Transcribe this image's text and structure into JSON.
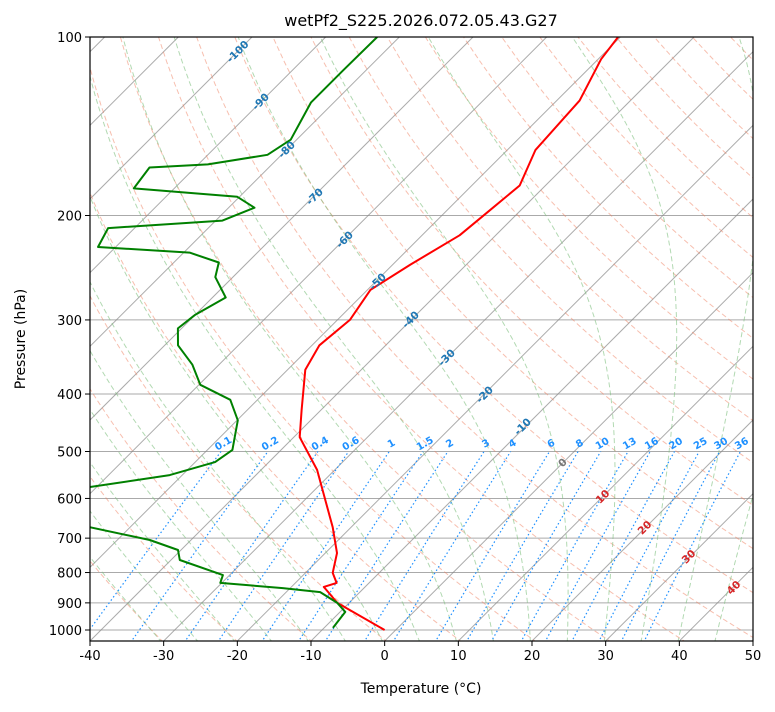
{
  "chart_data": {
    "type": "line",
    "subtype": "skew-t log-p",
    "title": "wetPf2_S225.2026.072.05.43.G27",
    "xlabel": "Temperature (°C)",
    "ylabel": "Pressure (hPa)",
    "xlim": [
      -40,
      50
    ],
    "ylim": [
      1050,
      100
    ],
    "x_ticks": [
      -40,
      -30,
      -20,
      -10,
      0,
      10,
      20,
      30,
      40,
      50
    ],
    "y_ticks": [
      1000,
      900,
      800,
      700,
      600,
      500,
      400,
      300,
      200,
      100
    ],
    "grid": true,
    "isotherm_labels": [
      -100,
      -90,
      -80,
      -70,
      -60,
      -50,
      -40,
      -30,
      -20,
      -10,
      0,
      10,
      20,
      30,
      40
    ],
    "mixing_ratio_labels": [
      "0.1",
      "0.2",
      "0.4",
      "0.6",
      "1",
      "1.5",
      "2",
      "3",
      "4",
      "6",
      "8",
      "10",
      "13",
      "16",
      "20",
      "25",
      "30",
      "36"
    ],
    "colors": {
      "temperature": "#ff0000",
      "dewpoint": "#008000",
      "isotherm": "#888888",
      "dry_adiabat": "#f08060",
      "moist_adiabat": "#7fbf7f",
      "mixing_ratio": "#1e90ff",
      "iso_neg": "#1f77b4",
      "iso_zero": "#777777",
      "iso_pos": "#d62728"
    },
    "series": [
      {
        "name": "Temperature",
        "pressure": [
          1000,
          900,
          846,
          833,
          801,
          742,
          671,
          537,
          473,
          426,
          364,
          331,
          300,
          267,
          242,
          216,
          196,
          178,
          155,
          128,
          109,
          100
        ],
        "values": [
          -1.5,
          -11.6,
          -15.6,
          -14.4,
          -16.3,
          -18.4,
          -22.5,
          -32.4,
          -39.2,
          -42.6,
          -47.6,
          -49,
          -48.3,
          -49.6,
          -47.6,
          -44.9,
          -44.2,
          -43.5,
          -46.2,
          -46.9,
          -49.6,
          -50.3
        ]
      },
      {
        "name": "Dewpoint",
        "pressure": [
          992,
          932,
          900,
          863,
          850,
          833,
          808,
          762,
          733,
          705,
          671,
          620,
          574,
          548,
          521,
          497,
          443,
          409,
          386,
          357,
          331,
          310,
          294,
          275,
          254,
          240,
          231,
          226,
          210,
          204,
          194,
          186,
          180,
          166,
          164,
          158,
          149,
          129,
          114,
          100
        ],
        "values": [
          -8.8,
          -9.3,
          -11.6,
          -15.4,
          -21,
          -30.2,
          -30.9,
          -38.8,
          -40.4,
          -45.6,
          -55.5,
          -70,
          -60.9,
          -51.7,
          -47.3,
          -46.6,
          -49.9,
          -53.7,
          -59.8,
          -63.6,
          -68.2,
          -70.5,
          -70,
          -68.2,
          -72.4,
          -73.9,
          -79.2,
          -92.4,
          -93.6,
          -79.1,
          -76.5,
          -80.3,
          -95.5,
          -96.2,
          -88.7,
          -81.9,
          -80.8,
          -83.1,
          -83.1,
          -83
        ]
      }
    ]
  }
}
